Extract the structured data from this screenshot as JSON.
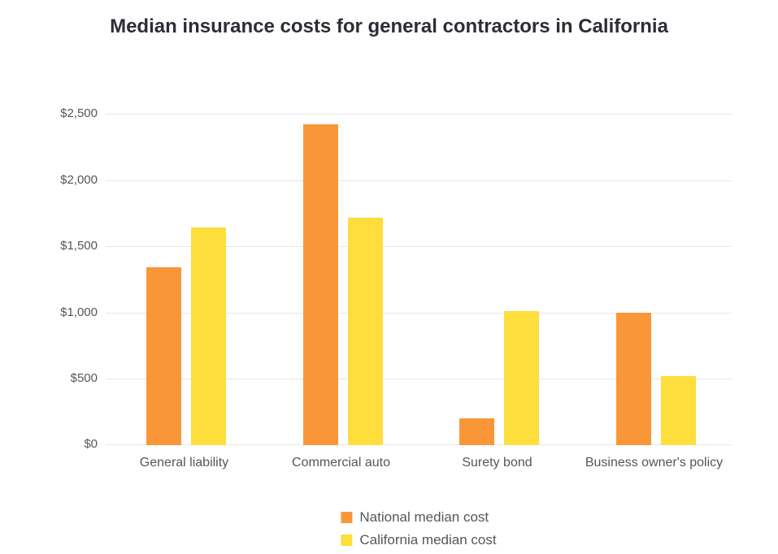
{
  "page": {
    "background_color": "#ffffff"
  },
  "chart_data": {
    "type": "bar",
    "title": "Median insurance costs for general contractors in California",
    "categories": [
      "General liability",
      "Commercial auto",
      "Surety bond",
      "Business owner's policy"
    ],
    "series": [
      {
        "name": "National median cost",
        "key": "national",
        "color": "#f99738",
        "values": [
          1340,
          2420,
          200,
          1000
        ]
      },
      {
        "name": "California median cost",
        "key": "california",
        "color": "#fdde3c",
        "values": [
          1640,
          1715,
          1010,
          520
        ]
      }
    ],
    "xlabel": "",
    "ylabel": "",
    "ylim": [
      0,
      2500
    ],
    "tick_values": [
      0,
      500,
      1000,
      1500,
      2000,
      2500
    ],
    "tick_labels": [
      "$0",
      "$500",
      "$1,000",
      "$1,500",
      "$2,000",
      "$2,500"
    ],
    "grid": true,
    "legend_position": "bottom",
    "title_color": "#2d2d35",
    "axis_text_color": "#55565c",
    "gridline_color": "#e6e6e6"
  }
}
